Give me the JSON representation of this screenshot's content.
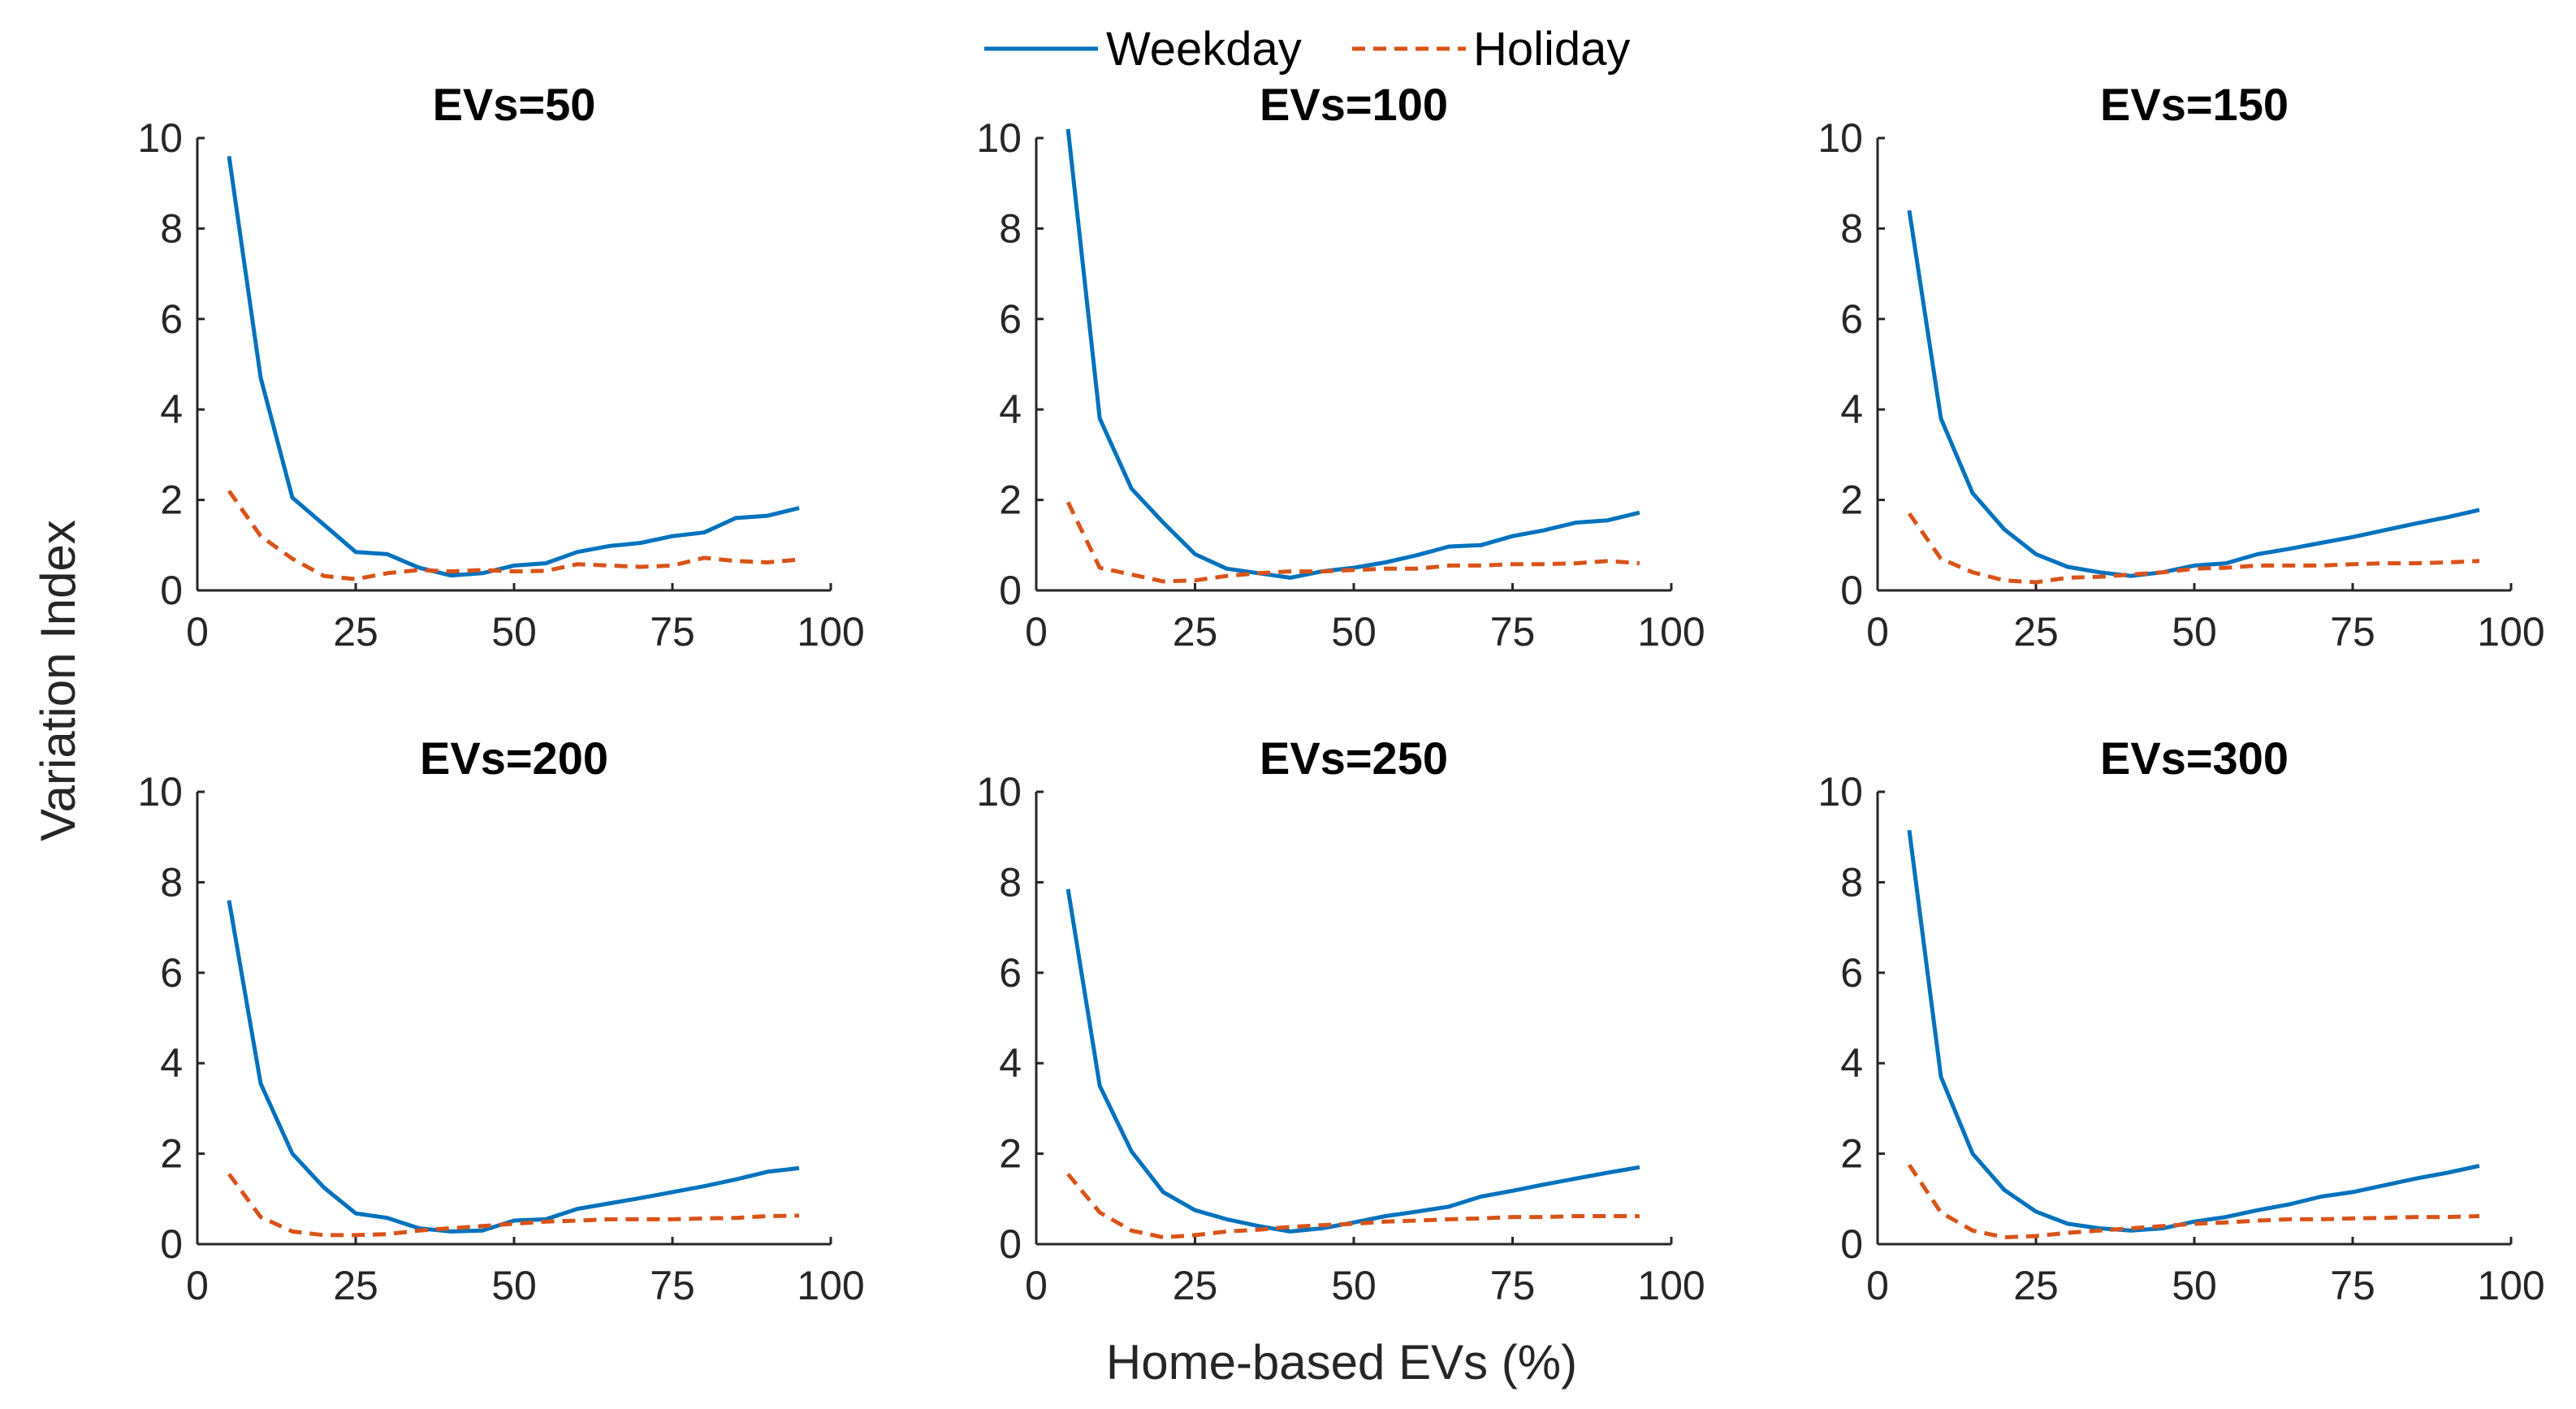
{
  "chart_data": {
    "type": "line",
    "xlabel": "Home-based EVs (%)",
    "ylabel": "Variation Index",
    "xlim": [
      0,
      100
    ],
    "ylim": [
      0,
      10
    ],
    "xticks": [
      0,
      25,
      50,
      75,
      100
    ],
    "yticks": [
      0,
      2,
      4,
      6,
      8,
      10
    ],
    "x": [
      5,
      10,
      15,
      20,
      25,
      30,
      35,
      40,
      45,
      50,
      55,
      60,
      65,
      70,
      75,
      80,
      85,
      90,
      95
    ],
    "legend": {
      "position": "top-center",
      "entries": [
        {
          "name": "Weekday",
          "color": "#0072BD",
          "style": "solid"
        },
        {
          "name": "Holiday",
          "color": "#D95319",
          "style": "dashed"
        }
      ]
    },
    "panels": [
      {
        "title": "EVs=50",
        "series": [
          {
            "name": "Weekday",
            "values": [
              9.6,
              4.7,
              2.05,
              1.45,
              0.85,
              0.8,
              0.5,
              0.33,
              0.38,
              0.55,
              0.6,
              0.85,
              0.98,
              1.05,
              1.2,
              1.28,
              1.6,
              1.65,
              1.82
            ]
          },
          {
            "name": "Holiday",
            "values": [
              2.2,
              1.2,
              0.7,
              0.32,
              0.25,
              0.38,
              0.45,
              0.42,
              0.45,
              0.42,
              0.43,
              0.58,
              0.55,
              0.52,
              0.55,
              0.72,
              0.65,
              0.62,
              0.68
            ]
          }
        ]
      },
      {
        "title": "EVs=100",
        "series": [
          {
            "name": "Weekday",
            "values": [
              10.2,
              3.8,
              2.25,
              1.5,
              0.8,
              0.48,
              0.38,
              0.28,
              0.42,
              0.5,
              0.62,
              0.78,
              0.97,
              1.0,
              1.2,
              1.33,
              1.5,
              1.55,
              1.72
            ]
          },
          {
            "name": "Holiday",
            "values": [
              1.95,
              0.5,
              0.35,
              0.2,
              0.22,
              0.32,
              0.38,
              0.42,
              0.42,
              0.45,
              0.48,
              0.48,
              0.55,
              0.55,
              0.58,
              0.58,
              0.6,
              0.65,
              0.6
            ]
          }
        ]
      },
      {
        "title": "EVs=150",
        "series": [
          {
            "name": "Weekday",
            "values": [
              8.4,
              3.8,
              2.15,
              1.35,
              0.8,
              0.52,
              0.4,
              0.32,
              0.4,
              0.55,
              0.6,
              0.8,
              0.92,
              1.05,
              1.18,
              1.33,
              1.48,
              1.62,
              1.78
            ]
          },
          {
            "name": "Holiday",
            "values": [
              1.7,
              0.7,
              0.4,
              0.22,
              0.18,
              0.28,
              0.3,
              0.35,
              0.4,
              0.48,
              0.5,
              0.55,
              0.55,
              0.55,
              0.58,
              0.6,
              0.6,
              0.62,
              0.65
            ]
          }
        ]
      },
      {
        "title": "EVs=200",
        "series": [
          {
            "name": "Weekday",
            "values": [
              7.6,
              3.55,
              2.0,
              1.25,
              0.68,
              0.58,
              0.35,
              0.28,
              0.3,
              0.52,
              0.55,
              0.78,
              0.9,
              1.02,
              1.15,
              1.28,
              1.43,
              1.6,
              1.68
            ]
          },
          {
            "name": "Holiday",
            "values": [
              1.55,
              0.6,
              0.28,
              0.2,
              0.2,
              0.22,
              0.3,
              0.35,
              0.4,
              0.45,
              0.5,
              0.52,
              0.55,
              0.55,
              0.55,
              0.57,
              0.58,
              0.62,
              0.63
            ]
          }
        ]
      },
      {
        "title": "EVs=250",
        "series": [
          {
            "name": "Weekday",
            "values": [
              7.85,
              3.5,
              2.05,
              1.15,
              0.75,
              0.55,
              0.4,
              0.28,
              0.35,
              0.48,
              0.62,
              0.72,
              0.83,
              1.05,
              1.18,
              1.32,
              1.45,
              1.58,
              1.7
            ]
          },
          {
            "name": "Holiday",
            "values": [
              1.55,
              0.7,
              0.3,
              0.15,
              0.2,
              0.28,
              0.32,
              0.38,
              0.42,
              0.45,
              0.5,
              0.52,
              0.55,
              0.57,
              0.6,
              0.6,
              0.62,
              0.62,
              0.62
            ]
          }
        ]
      },
      {
        "title": "EVs=300",
        "series": [
          {
            "name": "Weekday",
            "values": [
              9.15,
              3.7,
              2.0,
              1.2,
              0.72,
              0.45,
              0.35,
              0.3,
              0.35,
              0.5,
              0.6,
              0.75,
              0.88,
              1.05,
              1.15,
              1.3,
              1.45,
              1.58,
              1.73
            ]
          },
          {
            "name": "Holiday",
            "values": [
              1.75,
              0.7,
              0.3,
              0.15,
              0.18,
              0.25,
              0.3,
              0.35,
              0.4,
              0.45,
              0.48,
              0.52,
              0.55,
              0.55,
              0.57,
              0.58,
              0.6,
              0.6,
              0.62
            ]
          }
        ]
      }
    ]
  }
}
